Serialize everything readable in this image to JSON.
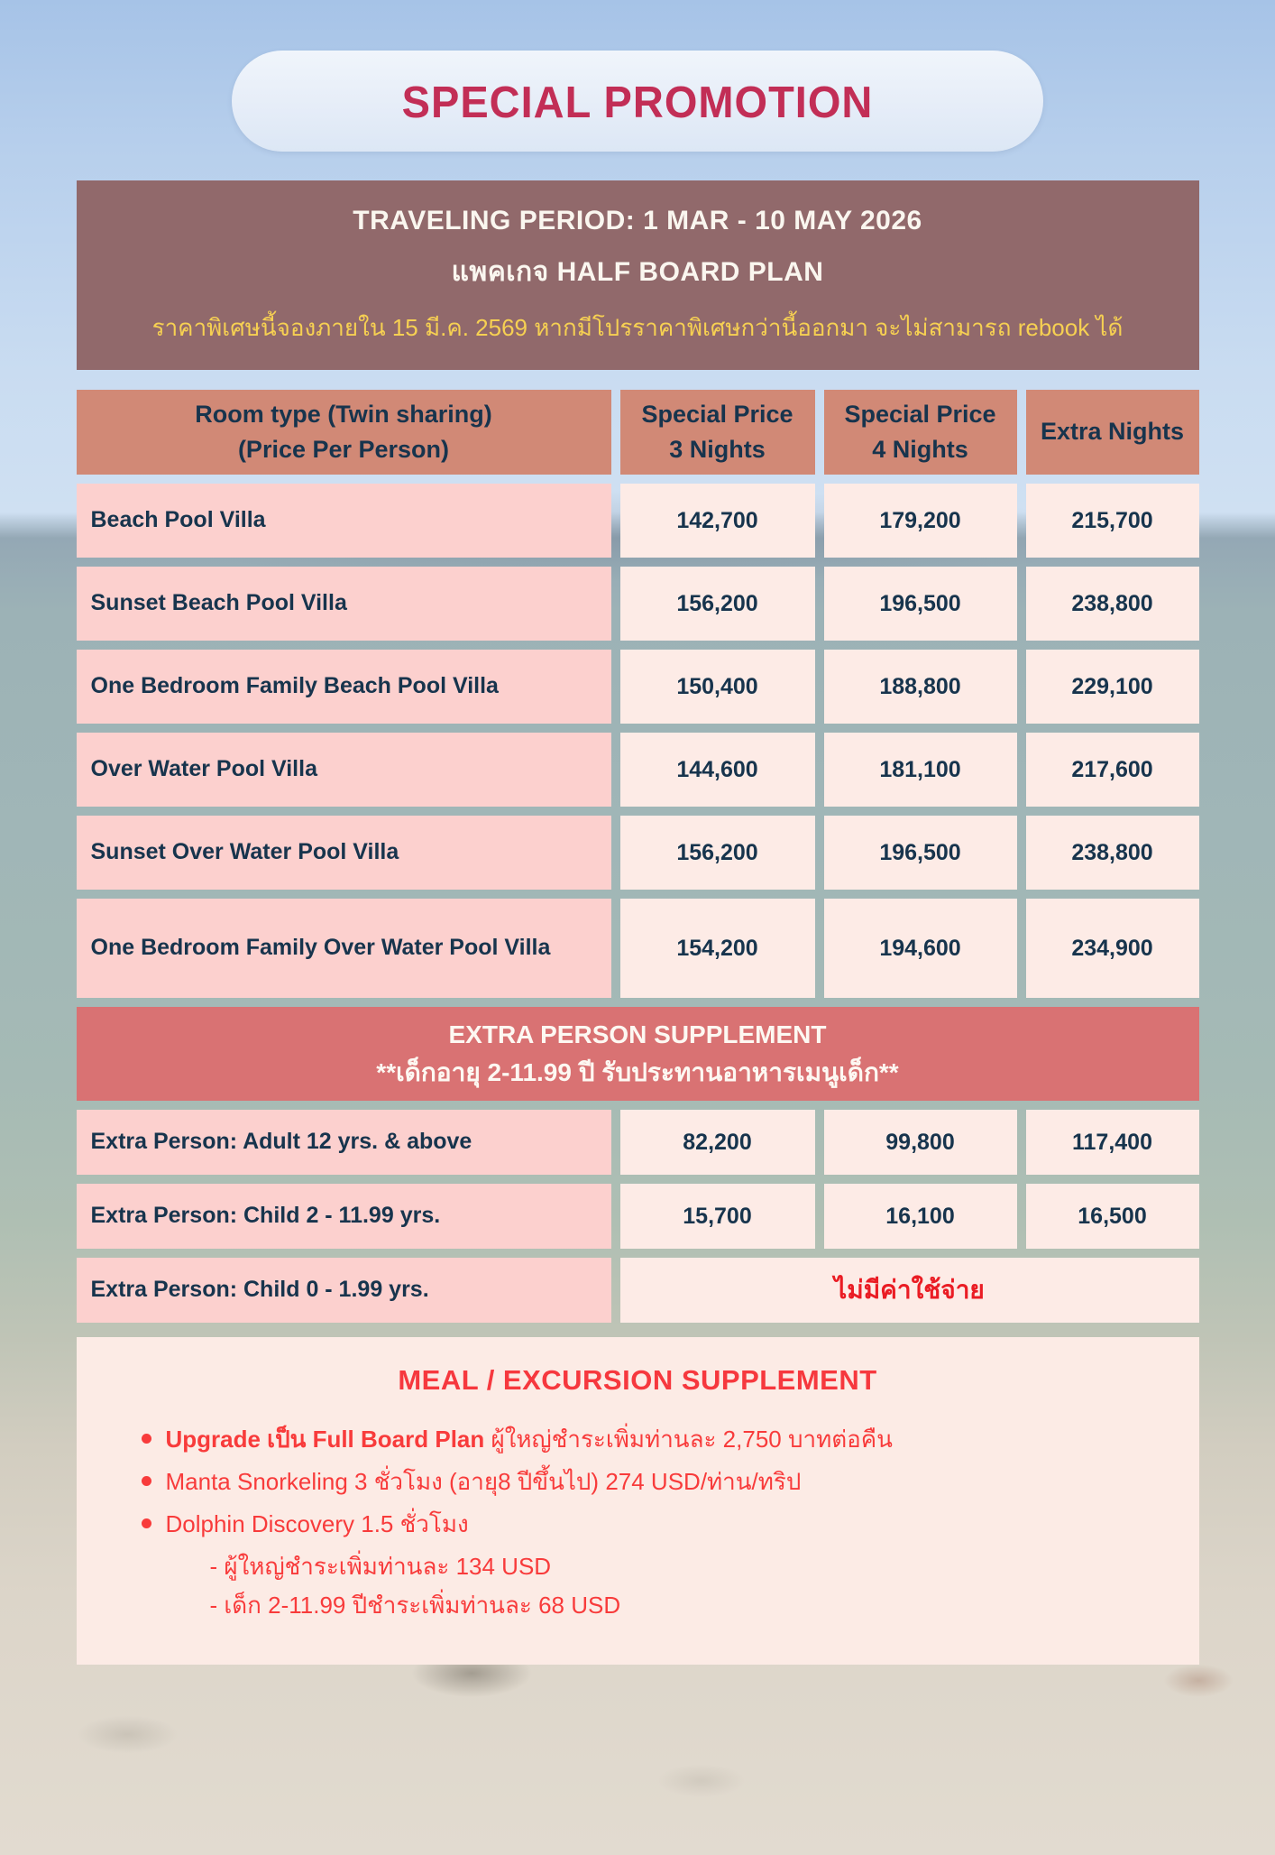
{
  "page_title": "SPECIAL PROMOTION",
  "period_banner": {
    "traveling_period": "TRAVELING PERIOD: 1 MAR - 10 MAY 2026",
    "package_plan": "แพคเกจ HALF BOARD PLAN",
    "booking_condition": "ราคาพิเศษนี้จองภายใน 15 มี.ค. 2569 หากมีโปรราคาพิเศษกว่านี้ออกมา จะไม่สามารถ rebook ได้"
  },
  "price_table": {
    "headers": {
      "room": {
        "line1": "Room type (Twin sharing)",
        "line2": "(Price Per Person)"
      },
      "nights3": {
        "line1": "Special Price",
        "line2": "3 Nights"
      },
      "nights4": {
        "line1": "Special Price",
        "line2": "4 Nights"
      },
      "extra": "Extra Nights"
    },
    "rows": [
      {
        "name": "Beach Pool Villa",
        "p3": "142,700",
        "p4": "179,200",
        "extra": "215,700"
      },
      {
        "name": "Sunset Beach Pool Villa",
        "p3": "156,200",
        "p4": "196,500",
        "extra": "238,800"
      },
      {
        "name": "One Bedroom Family Beach Pool Villa",
        "p3": "150,400",
        "p4": "188,800",
        "extra": "229,100"
      },
      {
        "name": "Over Water Pool Villa",
        "p3": "144,600",
        "p4": "181,100",
        "extra": "217,600"
      },
      {
        "name": "Sunset Over Water Pool Villa",
        "p3": "156,200",
        "p4": "196,500",
        "extra": "238,800"
      },
      {
        "name": "One Bedroom Family Over Water Pool Villa",
        "p3": "154,200",
        "p4": "194,600",
        "extra": "234,900"
      }
    ]
  },
  "extra_person": {
    "banner_line1": "EXTRA PERSON SUPPLEMENT",
    "banner_line2": "**เด็กอายุ 2-11.99 ปี รับประทานอาหารเมนูเด็ก**",
    "rows": [
      {
        "name": "Extra Person: Adult 12 yrs. & above",
        "p3": "82,200",
        "p4": "99,800",
        "extra": "117,400"
      },
      {
        "name": "Extra Person: Child 2 - 11.99 yrs.",
        "p3": "15,700",
        "p4": "16,100",
        "extra": "16,500"
      }
    ],
    "free_row": {
      "name": "Extra Person: Child 0 - 1.99 yrs.",
      "value": "ไม่มีค่าใช้จ่าย"
    }
  },
  "meal_section": {
    "title": "MEAL / EXCURSION SUPPLEMENT",
    "bullet1_bold": "Upgrade เป็น Full Board Plan",
    "bullet1_rest": " ผู้ใหญ่ชำระเพิ่มท่านละ 2,750 บาทต่อคืน",
    "bullet2": "Manta Snorkeling 3 ชั่วโมง (อายุ8 ปีขึ้นไป) 274 USD/ท่าน/ทริป",
    "bullet3": "Dolphin Discovery 1.5 ชั่วโมง",
    "bullet3_sub1": "- ผู้ใหญ่ชำระเพิ่มท่านละ 134 USD",
    "bullet3_sub2": "- เด็ก 2-11.99 ปีชำระเพิ่มท่านละ 68 USD"
  },
  "colors": {
    "title_accent": "#c22e56",
    "period_banner_bg": "#91696b",
    "condition_yellow": "#f6d052",
    "table_header_bg": "#d18976",
    "text_navy": "#17344d",
    "room_cell_pink": "#fcd0ce",
    "price_cell_pink": "#fdebe6",
    "supplement_banner_bg": "#d97273",
    "meal_red": "#f83b3b",
    "no_charge_red": "#ea1c24"
  }
}
